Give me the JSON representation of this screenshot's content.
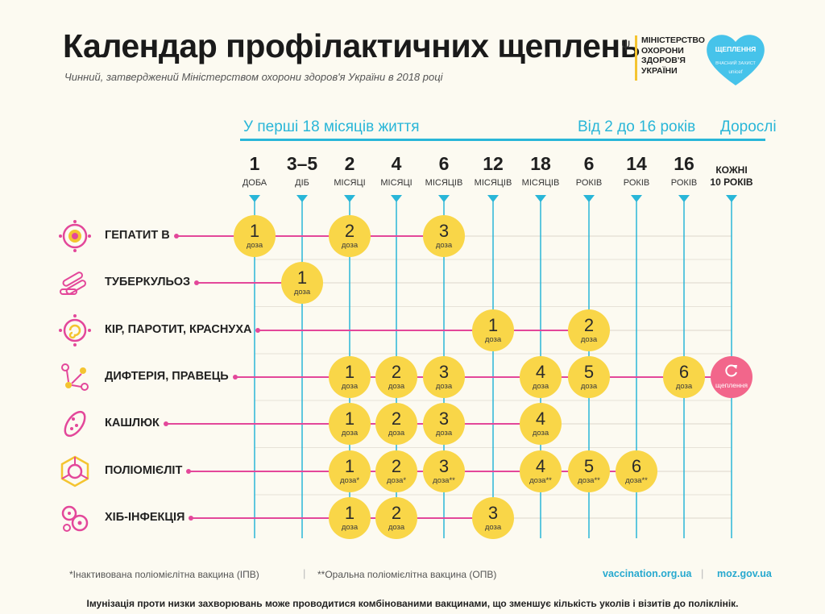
{
  "header": {
    "title": "Календар профілактичних щеплень",
    "subtitle": "Чинний, затверджений Міністерством охорони здоров'я України в 2018 році",
    "ministry": [
      "МІНІСТЕРСТВО",
      "ОХОРОНИ",
      "ЗДОРОВ'Я",
      "УКРАЇНИ"
    ],
    "unicef_title": [
      "ЩЕПЛЕННЯ"
    ],
    "unicef_sub": "ВЧАСНИЙ ЗАХИСТ",
    "unicef_brand": "unicef"
  },
  "colors": {
    "accent": "#29b6d8",
    "dose": "#f9d648",
    "booster": "#f2668b",
    "disease_line": "#e3479a",
    "grid": "#e6e2d8"
  },
  "chart_data": {
    "type": "table",
    "groups": [
      {
        "label": "У перші 18 місяців життя",
        "from": 0,
        "to": 6
      },
      {
        "label": "Від 2 до 16 років",
        "from": 7,
        "to": 9
      },
      {
        "label": "Дорослі",
        "from": 10,
        "to": 10
      }
    ],
    "ages": [
      {
        "num": "1",
        "unit": "ДОБА"
      },
      {
        "num": "3–5",
        "unit": "ДІБ"
      },
      {
        "num": "2",
        "unit": "МІСЯЦІ"
      },
      {
        "num": "4",
        "unit": "МІСЯЦІ"
      },
      {
        "num": "6",
        "unit": "МІСЯЦІВ"
      },
      {
        "num": "12",
        "unit": "МІСЯЦІВ"
      },
      {
        "num": "18",
        "unit": "МІСЯЦІВ"
      },
      {
        "num": "6",
        "unit": "РОКІВ"
      },
      {
        "num": "14",
        "unit": "РОКІВ"
      },
      {
        "num": "16",
        "unit": "РОКІВ"
      },
      {
        "num": "",
        "unit": "КОЖНІ\n10 РОКІВ"
      }
    ],
    "dose_word": "доза",
    "booster_label": "щеплення",
    "vaccines": [
      {
        "name": "ГЕПАТИТ В",
        "icon": "hepatitis-icon",
        "doses": [
          {
            "age": 0,
            "n": "1",
            "mark": ""
          },
          {
            "age": 2,
            "n": "2",
            "mark": ""
          },
          {
            "age": 4,
            "n": "3",
            "mark": ""
          }
        ]
      },
      {
        "name": "ТУБЕРКУЛЬОЗ",
        "icon": "tuberculosis-icon",
        "doses": [
          {
            "age": 1,
            "n": "1",
            "mark": ""
          }
        ]
      },
      {
        "name": "КІР, ПАРОТИТ, КРАСНУХА",
        "icon": "measles-icon",
        "doses": [
          {
            "age": 5,
            "n": "1",
            "mark": ""
          },
          {
            "age": 7,
            "n": "2",
            "mark": ""
          }
        ]
      },
      {
        "name": "ДИФТЕРІЯ, ПРАВЕЦЬ",
        "icon": "diphtheria-icon",
        "doses": [
          {
            "age": 2,
            "n": "1",
            "mark": ""
          },
          {
            "age": 3,
            "n": "2",
            "mark": ""
          },
          {
            "age": 4,
            "n": "3",
            "mark": ""
          },
          {
            "age": 6,
            "n": "4",
            "mark": ""
          },
          {
            "age": 7,
            "n": "5",
            "mark": ""
          },
          {
            "age": 9,
            "n": "6",
            "mark": ""
          }
        ],
        "booster_age": 10
      },
      {
        "name": "КАШЛЮК",
        "icon": "pertussis-icon",
        "doses": [
          {
            "age": 2,
            "n": "1",
            "mark": ""
          },
          {
            "age": 3,
            "n": "2",
            "mark": ""
          },
          {
            "age": 4,
            "n": "3",
            "mark": ""
          },
          {
            "age": 6,
            "n": "4",
            "mark": ""
          }
        ]
      },
      {
        "name": "ПОЛІОМІЄЛІТ",
        "icon": "polio-icon",
        "doses": [
          {
            "age": 2,
            "n": "1",
            "mark": "*"
          },
          {
            "age": 3,
            "n": "2",
            "mark": "*"
          },
          {
            "age": 4,
            "n": "3",
            "mark": "**"
          },
          {
            "age": 6,
            "n": "4",
            "mark": "**"
          },
          {
            "age": 7,
            "n": "5",
            "mark": "**"
          },
          {
            "age": 8,
            "n": "6",
            "mark": "**"
          }
        ]
      },
      {
        "name": "ХІБ-ІНФЕКЦІЯ",
        "icon": "hib-icon",
        "doses": [
          {
            "age": 2,
            "n": "1",
            "mark": ""
          },
          {
            "age": 3,
            "n": "2",
            "mark": ""
          },
          {
            "age": 5,
            "n": "3",
            "mark": ""
          }
        ]
      }
    ]
  },
  "footer": {
    "ipv": "*Інактивована поліомієлітна вакцина (ІПВ)",
    "opv": "**Оральна поліомієлітна вакцина (ОПВ)",
    "sep": "|",
    "site1": "vaccination.org.ua",
    "site2": "moz.gov.ua",
    "note": "Імунізація проти низки захворювань може проводитися комбінованими вакцинами, що зменшує кількість уколів і візитів до поліклінік."
  }
}
